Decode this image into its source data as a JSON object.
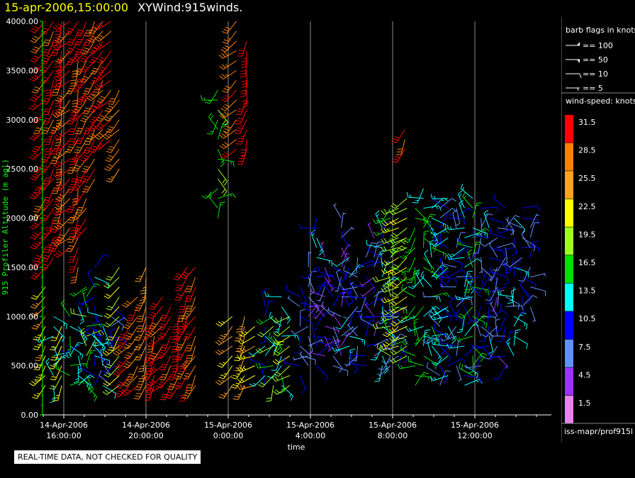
{
  "header": {
    "datetime": "15-apr-2006,15:00:00",
    "title": "XYWind:915winds."
  },
  "quality_note": "REAL-TIME DATA, NOT CHECKED FOR QUALITY",
  "legend": {
    "barb_title": "barb flags in knots",
    "barbs": [
      {
        "label": "== 100"
      },
      {
        "label": "== 50"
      },
      {
        "label": "== 10"
      },
      {
        "label": "== 5"
      }
    ],
    "speed_title": "wind-speed: knots",
    "speed_colors": [
      {
        "label": "31.5",
        "color": "#ff0000"
      },
      {
        "label": "28.5",
        "color": "#ff8000"
      },
      {
        "label": "25.5",
        "color": "#ffa020"
      },
      {
        "label": "22.5",
        "color": "#ffff00"
      },
      {
        "label": "19.5",
        "color": "#a0ff20"
      },
      {
        "label": "16.5",
        "color": "#00e000"
      },
      {
        "label": "13.5",
        "color": "#00ffff"
      },
      {
        "label": "10.5",
        "color": "#0000ff"
      },
      {
        "label": "7.5",
        "color": "#6090ff"
      },
      {
        "label": "4.5",
        "color": "#a030ff"
      },
      {
        "label": "1.5",
        "color": "#ee80ee"
      }
    ],
    "source": "iss-mapr/prof915l"
  },
  "chart_data": {
    "type": "scatter",
    "title": "XYWind:915winds.",
    "xlabel": "time",
    "ylabel": "915 Profiler Altitude (m agl)",
    "ylim": [
      0,
      4000
    ],
    "xlim": [
      -1.1,
      13.8
    ],
    "xunits": "hours since 14-Apr-2006 16:00:00",
    "yticks": [
      "0.00",
      "500.00",
      "1000.00",
      "1500.00",
      "2000.00",
      "2500.00",
      "3000.00",
      "3500.00",
      "4000.00"
    ],
    "xticks": [
      {
        "hours": 0,
        "line1": "14-Apr-2006",
        "line2": "16:00:00"
      },
      {
        "hours": 4,
        "line1": "14-Apr-2006",
        "line2": "20:00:00"
      },
      {
        "hours": 8,
        "line1": "15-Apr-2006",
        "line2": "0:00:00"
      },
      {
        "hours": 12,
        "line1": "15-Apr-2006",
        "line2": "4:00:00"
      },
      {
        "hours": 16,
        "line1": "15-Apr-2006",
        "line2": "8:00:00"
      },
      {
        "hours": 20,
        "line1": "15-Apr-2006",
        "line2": "12:00:00"
      }
    ],
    "profiles": [
      {
        "t": -0.9,
        "ranges": [
          [
            1500,
            4000,
            31
          ],
          [
            300,
            1300,
            24
          ]
        ]
      },
      {
        "t": -0.5,
        "ranges": [
          [
            1600,
            4000,
            31
          ],
          [
            300,
            1000,
            14
          ]
        ]
      },
      {
        "t": -0.1,
        "ranges": [
          [
            1800,
            4000,
            30
          ],
          [
            300,
            900,
            22
          ]
        ]
      },
      {
        "t": 0.3,
        "ranges": [
          [
            1700,
            4000,
            29
          ],
          [
            300,
            1000,
            16
          ]
        ]
      },
      {
        "t": 0.7,
        "ranges": [
          [
            1500,
            4000,
            30
          ],
          [
            300,
            1100,
            12
          ]
        ]
      },
      {
        "t": 1.1,
        "ranges": [
          [
            1900,
            4000,
            31
          ],
          [
            300,
            1300,
            18
          ]
        ]
      },
      {
        "t": 1.5,
        "ranges": [
          [
            2400,
            4000,
            30
          ],
          [
            300,
            1500,
            11
          ]
        ]
      },
      {
        "t": 1.9,
        "ranges": [
          [
            2800,
            4000,
            31
          ],
          [
            300,
            1000,
            13
          ]
        ]
      },
      {
        "t": 2.3,
        "ranges": [
          [
            2800,
            4000,
            31
          ],
          [
            300,
            1100,
            9
          ]
        ]
      },
      {
        "t": 2.7,
        "ranges": [
          [
            2500,
            3300,
            28
          ],
          [
            300,
            1500,
            20
          ]
        ]
      },
      {
        "t": 3.2,
        "ranges": [
          [
            300,
            900,
            31
          ]
        ]
      },
      {
        "t": 3.6,
        "ranges": [
          [
            300,
            1200,
            29
          ]
        ]
      },
      {
        "t": 4.0,
        "ranges": [
          [
            300,
            1500,
            27
          ]
        ]
      },
      {
        "t": 4.4,
        "ranges": [
          [
            300,
            1000,
            31
          ]
        ]
      },
      {
        "t": 4.8,
        "ranges": [
          [
            300,
            1200,
            31
          ]
        ]
      },
      {
        "t": 5.2,
        "ranges": [
          [
            300,
            1100,
            31
          ]
        ]
      },
      {
        "t": 5.6,
        "ranges": [
          [
            300,
            1000,
            31
          ]
        ]
      },
      {
        "t": 6.0,
        "ranges": [
          [
            300,
            1500,
            31
          ]
        ]
      },
      {
        "t": 6.4,
        "ranges": [
          [
            300,
            1500,
            30
          ]
        ]
      },
      {
        "t": 7.5,
        "ranges": [
          [
            2000,
            3300,
            17
          ]
        ]
      },
      {
        "t": 8.2,
        "ranges": [
          [
            300,
            1000,
            25
          ]
        ]
      },
      {
        "t": 8.4,
        "ranges": [
          [
            2700,
            4000,
            29
          ]
        ]
      },
      {
        "t": 8.8,
        "ranges": [
          [
            300,
            1000,
            24
          ]
        ]
      },
      {
        "t": 8.9,
        "ranges": [
          [
            2700,
            3800,
            31
          ]
        ]
      },
      {
        "t": 9.3,
        "ranges": [
          [
            300,
            900,
            23
          ]
        ]
      },
      {
        "t": 9.8,
        "ranges": [
          [
            300,
            1100,
            12
          ]
        ]
      },
      {
        "t": 10.2,
        "ranges": [
          [
            300,
            1000,
            18
          ]
        ]
      },
      {
        "t": 10.6,
        "ranges": [
          [
            300,
            1200,
            14
          ]
        ]
      },
      {
        "t": 11.0,
        "ranges": [
          [
            300,
            1000,
            20
          ]
        ]
      },
      {
        "t": 11.5,
        "ranges": [
          [
            400,
            1300,
            9
          ]
        ]
      },
      {
        "t": 11.9,
        "ranges": [
          [
            500,
            1500,
            7
          ]
        ]
      },
      {
        "t": 12.3,
        "ranges": [
          [
            500,
            2000,
            11
          ]
        ]
      },
      {
        "t": 12.7,
        "ranges": [
          [
            600,
            1600,
            5
          ]
        ]
      },
      {
        "t": 13.1,
        "ranges": [
          [
            500,
            1500,
            9
          ]
        ]
      },
      {
        "t": 13.5,
        "ranges": [
          [
            600,
            2000,
            6
          ]
        ]
      },
      {
        "t": 13.9,
        "ranges": [
          [
            500,
            1700,
            12
          ]
        ]
      },
      {
        "t": 14.3,
        "ranges": [
          [
            600,
            1600,
            8
          ]
        ]
      },
      {
        "t": 14.7,
        "ranges": [
          [
            500,
            1600,
            10
          ]
        ]
      },
      {
        "t": 15.1,
        "ranges": [
          [
            600,
            1800,
            7
          ]
        ]
      },
      {
        "t": 15.5,
        "ranges": [
          [
            500,
            1900,
            13
          ]
        ]
      },
      {
        "t": 15.9,
        "ranges": [
          [
            600,
            2100,
            18
          ],
          [
            500,
            1000,
            9
          ]
        ]
      },
      {
        "t": 16.3,
        "ranges": [
          [
            700,
            2100,
            22
          ],
          [
            500,
            1000,
            8
          ]
        ]
      },
      {
        "t": 16.6,
        "ranges": [
          [
            2700,
            2900,
            31
          ]
        ]
      },
      {
        "t": 16.7,
        "ranges": [
          [
            600,
            2200,
            20
          ]
        ]
      },
      {
        "t": 17.1,
        "ranges": [
          [
            300,
            2100,
            16
          ]
        ]
      },
      {
        "t": 17.5,
        "ranges": [
          [
            500,
            2300,
            15
          ]
        ]
      },
      {
        "t": 17.9,
        "ranges": [
          [
            600,
            2100,
            14
          ]
        ]
      },
      {
        "t": 18.3,
        "ranges": [
          [
            300,
            2100,
            10
          ]
        ]
      },
      {
        "t": 18.7,
        "ranges": [
          [
            400,
            2200,
            12
          ]
        ]
      },
      {
        "t": 19.1,
        "ranges": [
          [
            500,
            2100,
            8
          ]
        ]
      },
      {
        "t": 19.5,
        "ranges": [
          [
            300,
            2100,
            13
          ]
        ]
      },
      {
        "t": 19.9,
        "ranges": [
          [
            400,
            2200,
            16
          ]
        ]
      },
      {
        "t": 20.3,
        "ranges": [
          [
            500,
            2100,
            9
          ]
        ]
      },
      {
        "t": 20.7,
        "ranges": [
          [
            700,
            2000,
            11
          ]
        ]
      },
      {
        "t": 21.1,
        "ranges": [
          [
            600,
            1900,
            7
          ]
        ]
      },
      {
        "t": 21.5,
        "ranges": [
          [
            500,
            2100,
            9
          ]
        ]
      },
      {
        "t": 21.9,
        "ranges": [
          [
            600,
            2000,
            12
          ]
        ]
      },
      {
        "t": 22.3,
        "ranges": [
          [
            1100,
            2100,
            10
          ]
        ]
      },
      {
        "t": 22.7,
        "ranges": [
          [
            1100,
            1900,
            8
          ]
        ]
      }
    ]
  }
}
